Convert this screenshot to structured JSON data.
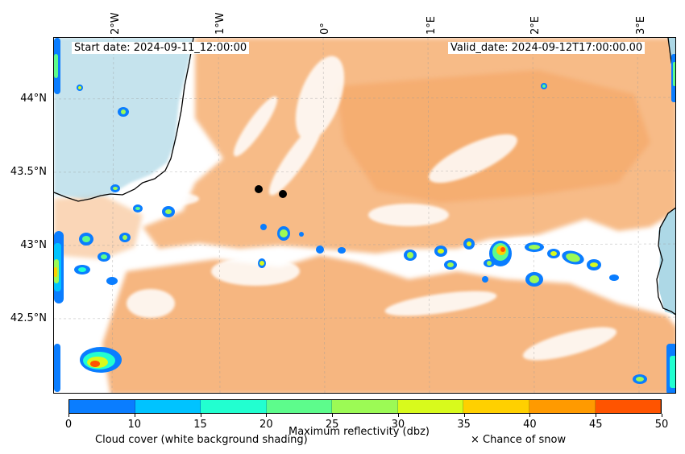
{
  "header": {
    "start_date": "Start date: 2024-09-11_12:00:00",
    "valid_date": "Valid_date: 2024-09-12T17:00:00.00"
  },
  "axes": {
    "lon_labels": [
      "2°W",
      "1°W",
      "0°",
      "1°E",
      "2°E",
      "3°E"
    ],
    "lat_labels": [
      "44°N",
      "43.5°N",
      "43°N",
      "42.5°N"
    ]
  },
  "colorbar": {
    "ticks": [
      "0",
      "10",
      "15",
      "20",
      "25",
      "30",
      "35",
      "40",
      "45",
      "50"
    ],
    "colors": [
      "#0a7dff",
      "#00c3ff",
      "#22ffd0",
      "#5dfc8c",
      "#9cfa55",
      "#d8fa1c",
      "#ffd000",
      "#ff9a00",
      "#ff5400"
    ],
    "label": "Maximum reflectivity (dbz)"
  },
  "captions": {
    "cloud": "Cloud cover (white background shading)",
    "snow": "× Chance of snow"
  },
  "colors": {
    "cloud_orange": "#f4a460",
    "sea_blue": "#add8e6",
    "coastline": "#000000"
  }
}
